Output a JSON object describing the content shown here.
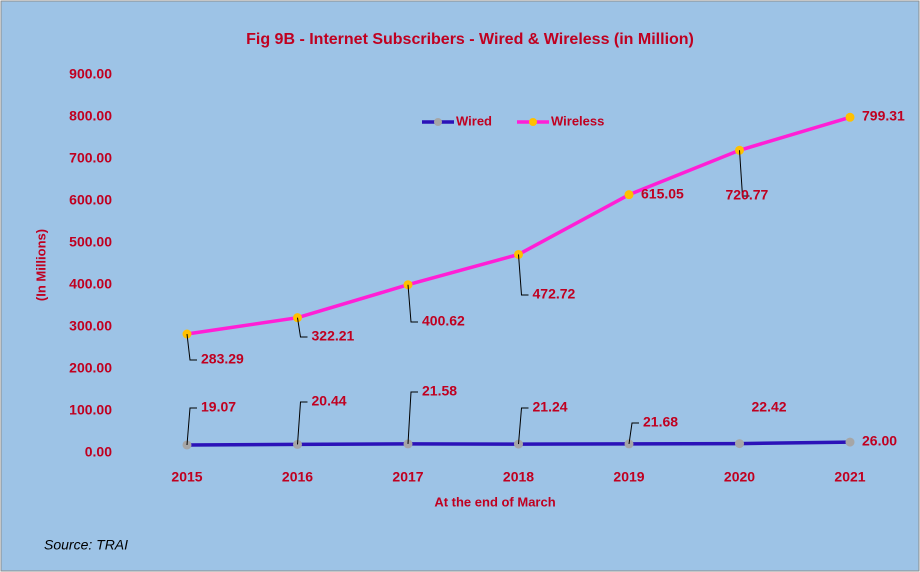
{
  "chart_data": {
    "type": "line",
    "title": "Fig 9B - Internet Subscribers - Wired & Wireless (in Million)",
    "x_label": "At the end of March",
    "y_label": "(In Millions)",
    "source": "Source: TRAI",
    "categories": [
      "2015",
      "2016",
      "2017",
      "2018",
      "2019",
      "2020",
      "2021"
    ],
    "series": [
      {
        "name": "Wired",
        "color": "#2b12b8",
        "marker_color": "#a6a6a6",
        "values": [
          19.07,
          20.44,
          21.58,
          21.24,
          21.68,
          22.42,
          26
        ],
        "value_labels": [
          "19.07",
          "20.44",
          "21.58",
          "21.24",
          "21.68",
          "22.42",
          "26.00"
        ]
      },
      {
        "name": "Wireless",
        "color": "#ff1fd6",
        "marker_color": "#ffc000",
        "values": [
          283.29,
          322.21,
          400.62,
          472.72,
          615.05,
          720.77,
          799.31
        ]
      }
    ],
    "ylim": [
      0,
      900
    ],
    "yticks": [
      {
        "value": 0,
        "label": "0.00"
      },
      {
        "value": 100,
        "label": "100.00"
      },
      {
        "value": 200,
        "label": "200.00"
      },
      {
        "value": 300,
        "label": "300.00"
      },
      {
        "value": 400,
        "label": "400.00"
      },
      {
        "value": 500,
        "label": "500.00"
      },
      {
        "value": 600,
        "label": "600.00"
      },
      {
        "value": 700,
        "label": "700.00"
      },
      {
        "value": 800,
        "label": "800.00"
      },
      {
        "value": 900,
        "label": "900.00"
      }
    ],
    "grid": false,
    "legend": "top"
  }
}
